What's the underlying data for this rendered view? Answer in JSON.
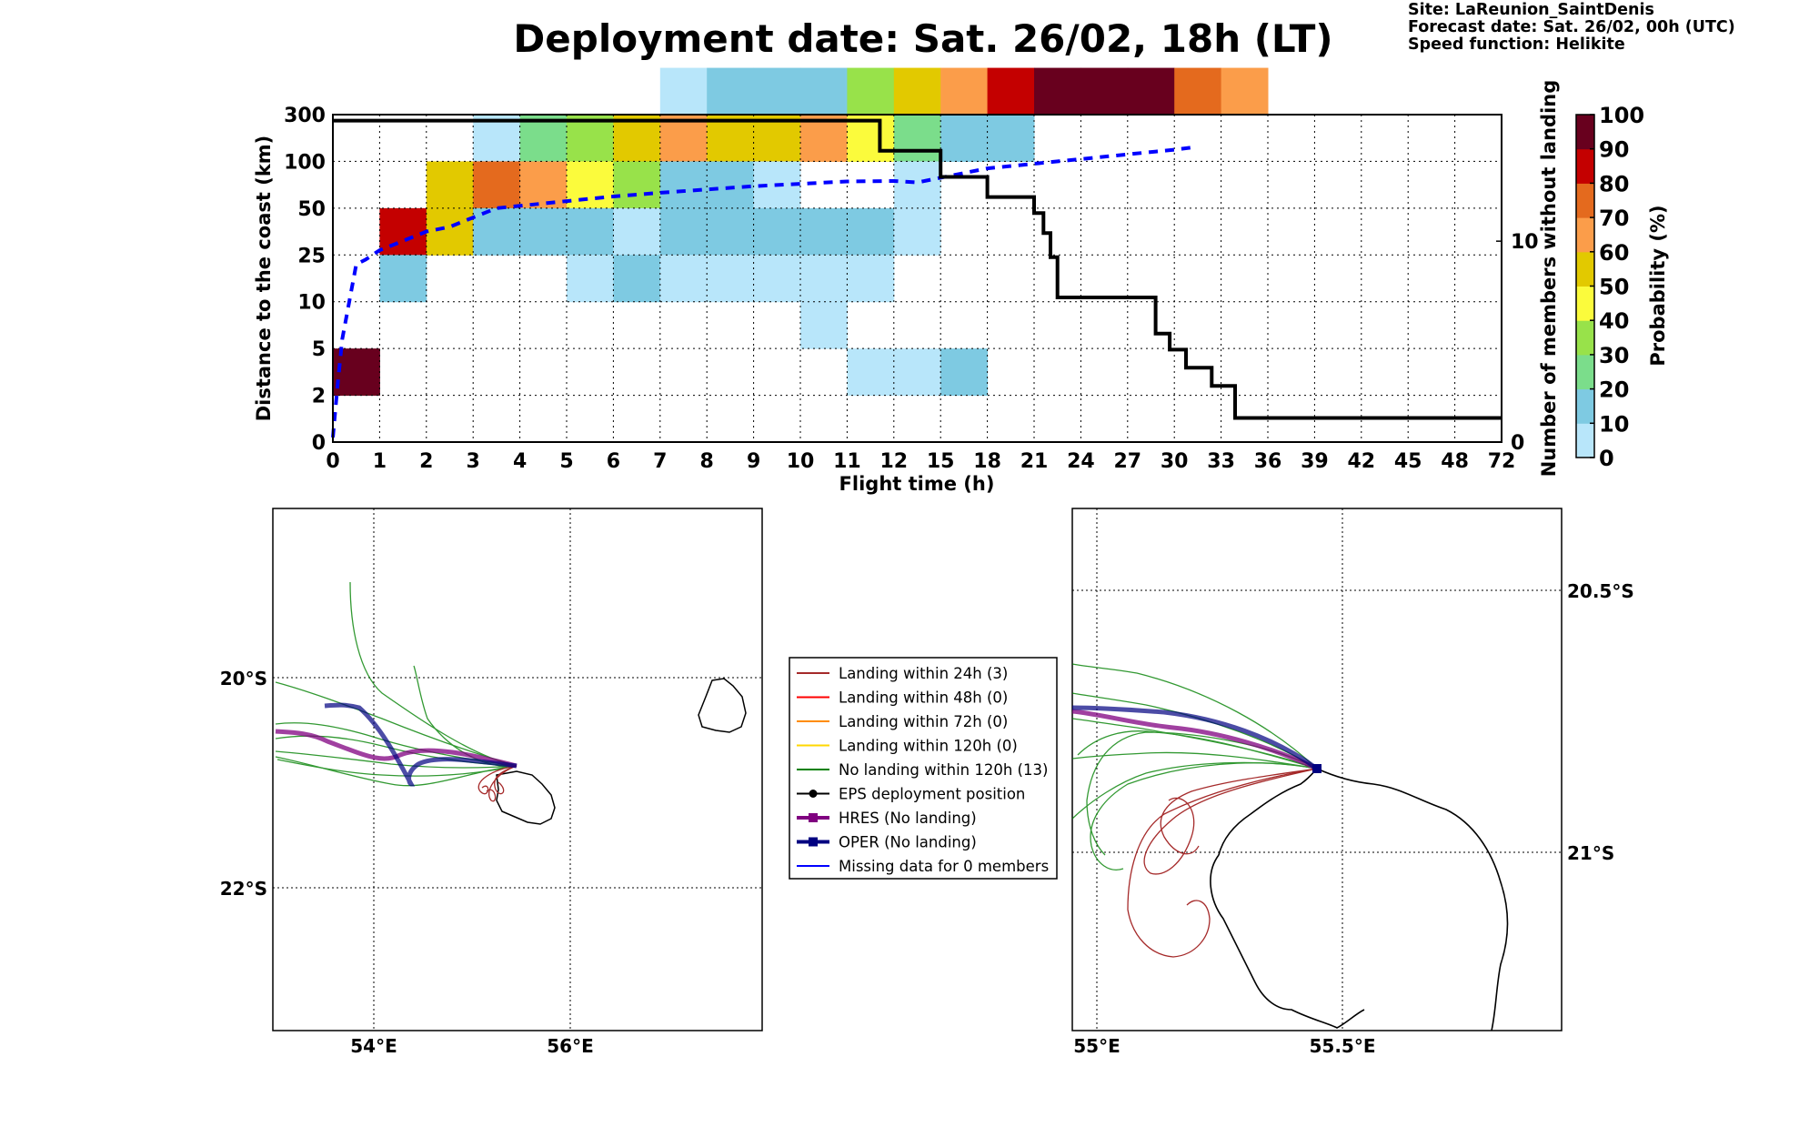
{
  "title": "Deployment date: Sat. 26/02, 18h (LT)",
  "meta": {
    "site": "Site: LaReunion_SaintDenis",
    "forecast": "Forecast date: Sat. 26/02, 00h (UTC)",
    "speed": "Speed function: Helikite"
  },
  "chart_data": {
    "type": "heatmap",
    "title": "Deployment date: Sat. 26/02, 18h (LT)",
    "xlabel": "Flight time (h)",
    "ylabel": "Distance to the coast (km)",
    "ylabel_right": "Number of members without landing",
    "colorbar_label": "Probability (%)",
    "x_ticks": [
      "0",
      "1",
      "2",
      "3",
      "4",
      "5",
      "6",
      "7",
      "8",
      "9",
      "10",
      "11",
      "12",
      "15",
      "18",
      "21",
      "24",
      "27",
      "30",
      "33",
      "36",
      "39",
      "42",
      "45",
      "48",
      "72"
    ],
    "y_ticks": [
      "0",
      "2",
      "5",
      "10",
      "25",
      "50",
      "100",
      "300"
    ],
    "y_right_ticks": [
      "0",
      "10"
    ],
    "y_right_range": [
      0,
      16.3
    ],
    "colorbar_ticks": [
      "0",
      "10",
      "20",
      "30",
      "40",
      "50",
      "60",
      "70",
      "80",
      "90",
      "100"
    ],
    "colorbar_colors": [
      "#b8e6fa",
      "#7ecae2",
      "#7bdd8b",
      "#98e24a",
      "#fbfb3c",
      "#e2c900",
      "#fb9d4a",
      "#e46a1e",
      "#c40000",
      "#68001e"
    ],
    "cells": [
      {
        "x": 0,
        "y": 1,
        "p": 95
      },
      {
        "x": 1,
        "y": 4,
        "p": 85
      },
      {
        "x": 1,
        "y": 3,
        "p": 15
      },
      {
        "x": 2,
        "y": 5,
        "p": 55
      },
      {
        "x": 2,
        "y": 4,
        "p": 55
      },
      {
        "x": 3,
        "y": 6,
        "p": 5
      },
      {
        "x": 3,
        "y": 5,
        "p": 75
      },
      {
        "x": 3,
        "y": 4,
        "p": 15
      },
      {
        "x": 4,
        "y": 6,
        "p": 25
      },
      {
        "x": 4,
        "y": 5,
        "p": 65
      },
      {
        "x": 4,
        "y": 4,
        "p": 15
      },
      {
        "x": 5,
        "y": 6,
        "p": 35
      },
      {
        "x": 5,
        "y": 5,
        "p": 45
      },
      {
        "x": 5,
        "y": 4,
        "p": 15
      },
      {
        "x": 5,
        "y": 3,
        "p": 5
      },
      {
        "x": 6,
        "y": 6,
        "p": 55
      },
      {
        "x": 6,
        "y": 5,
        "p": 35
      },
      {
        "x": 6,
        "y": 4,
        "p": 5
      },
      {
        "x": 6,
        "y": 3,
        "p": 15
      },
      {
        "x": 7,
        "y": 7,
        "p": 5
      },
      {
        "x": 7,
        "y": 6,
        "p": 65
      },
      {
        "x": 7,
        "y": 5,
        "p": 15
      },
      {
        "x": 7,
        "y": 4,
        "p": 15
      },
      {
        "x": 7,
        "y": 3,
        "p": 5
      },
      {
        "x": 8,
        "y": 7,
        "p": 15
      },
      {
        "x": 8,
        "y": 6,
        "p": 55
      },
      {
        "x": 8,
        "y": 5,
        "p": 15
      },
      {
        "x": 8,
        "y": 4,
        "p": 15
      },
      {
        "x": 8,
        "y": 3,
        "p": 5
      },
      {
        "x": 9,
        "y": 7,
        "p": 15
      },
      {
        "x": 9,
        "y": 6,
        "p": 55
      },
      {
        "x": 9,
        "y": 5,
        "p": 5
      },
      {
        "x": 9,
        "y": 4,
        "p": 15
      },
      {
        "x": 9,
        "y": 3,
        "p": 5
      },
      {
        "x": 10,
        "y": 7,
        "p": 15
      },
      {
        "x": 10,
        "y": 6,
        "p": 65
      },
      {
        "x": 10,
        "y": 4,
        "p": 15
      },
      {
        "x": 10,
        "y": 3,
        "p": 5
      },
      {
        "x": 10,
        "y": 2,
        "p": 5
      },
      {
        "x": 11,
        "y": 7,
        "p": 35
      },
      {
        "x": 11,
        "y": 6,
        "p": 45
      },
      {
        "x": 11,
        "y": 4,
        "p": 15
      },
      {
        "x": 11,
        "y": 3,
        "p": 5
      },
      {
        "x": 11,
        "y": 1,
        "p": 5
      },
      {
        "x": 12,
        "y": 7,
        "p": 55
      },
      {
        "x": 12,
        "y": 6,
        "p": 25
      },
      {
        "x": 12,
        "y": 5,
        "p": 5
      },
      {
        "x": 12,
        "y": 4,
        "p": 5
      },
      {
        "x": 12,
        "y": 1,
        "p": 5
      },
      {
        "x": 13,
        "y": 7,
        "p": 65
      },
      {
        "x": 13,
        "y": 6,
        "p": 15
      },
      {
        "x": 13,
        "y": 1,
        "p": 15
      },
      {
        "x": 14,
        "y": 7,
        "p": 85
      },
      {
        "x": 14,
        "y": 6,
        "p": 15
      },
      {
        "x": 15,
        "y": 7,
        "p": 95
      },
      {
        "x": 16,
        "y": 7,
        "p": 95
      },
      {
        "x": 17,
        "y": 7,
        "p": 95
      },
      {
        "x": 18,
        "y": 7,
        "p": 75
      },
      {
        "x": 19,
        "y": 7,
        "p": 65
      }
    ],
    "members_without_landing": [
      [
        0,
        16
      ],
      [
        11.7,
        16
      ],
      [
        11.7,
        14.5
      ],
      [
        13,
        14.5
      ],
      [
        13,
        13.2
      ],
      [
        14,
        13.2
      ],
      [
        14,
        12.2
      ],
      [
        15,
        12.2
      ],
      [
        15,
        11.4
      ],
      [
        15.2,
        11.4
      ],
      [
        15.2,
        10.4
      ],
      [
        15.35,
        10.4
      ],
      [
        15.35,
        9.2
      ],
      [
        15.5,
        9.2
      ],
      [
        15.5,
        7.2
      ],
      [
        17.6,
        7.2
      ],
      [
        17.6,
        5.4
      ],
      [
        17.9,
        5.4
      ],
      [
        17.9,
        4.6
      ],
      [
        18.25,
        4.6
      ],
      [
        18.25,
        3.7
      ],
      [
        18.8,
        3.7
      ],
      [
        18.8,
        2.8
      ],
      [
        19.3,
        2.8
      ],
      [
        19.3,
        1.2
      ],
      [
        25,
        1.2
      ]
    ],
    "mean_distance_curve": [
      [
        0,
        0.1
      ],
      [
        0.1,
        1.2
      ],
      [
        0.2,
        2.2
      ],
      [
        0.35,
        3
      ],
      [
        0.5,
        3.8
      ],
      [
        0.7,
        3.9
      ],
      [
        1,
        4.1
      ],
      [
        1.5,
        4.3
      ],
      [
        2,
        4.5
      ],
      [
        2.5,
        4.6
      ],
      [
        3,
        4.8
      ],
      [
        3.5,
        5
      ],
      [
        4,
        5.05
      ],
      [
        5,
        5.15
      ],
      [
        6,
        5.25
      ],
      [
        7,
        5.33
      ],
      [
        8,
        5.4
      ],
      [
        9,
        5.47
      ],
      [
        10,
        5.52
      ],
      [
        11,
        5.57
      ],
      [
        12,
        5.58
      ],
      [
        12.5,
        5.55
      ],
      [
        13,
        5.65
      ],
      [
        14,
        5.85
      ],
      [
        15,
        5.95
      ],
      [
        16,
        6.05
      ],
      [
        17,
        6.15
      ],
      [
        18,
        6.25
      ],
      [
        18.4,
        6.3
      ]
    ],
    "legend": [
      "Landing within 24h (3)",
      "Landing within 48h (0)",
      "Landing within 72h (0)",
      "Landing within 120h (0)",
      "No landing within 120h (13)",
      "EPS deployment position",
      "HRES (No landing)",
      "OPER (No landing)",
      "Missing data for 0 members"
    ],
    "legend_colors": [
      "#a52a2a",
      "#ff0000",
      "#ff8c00",
      "#ffd700",
      "#008000",
      "#000000",
      "#800080",
      "#000080",
      "#0000ff"
    ],
    "map_left": {
      "x_ticks": [
        "54°E",
        "56°E"
      ],
      "y_ticks": [
        "20°S",
        "22°S"
      ]
    },
    "map_right": {
      "x_ticks": [
        "55°E",
        "55.5°E"
      ],
      "y_ticks": [
        "20.5°S",
        "21°S"
      ]
    }
  }
}
